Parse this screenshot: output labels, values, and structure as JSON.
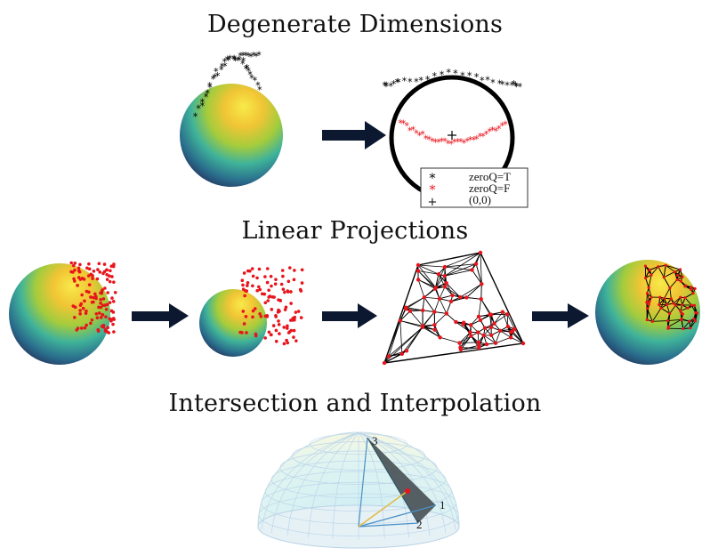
{
  "sections": {
    "degenerate": {
      "title": "Degenerate Dimensions"
    },
    "linear": {
      "title": "Linear Projections"
    },
    "intersection": {
      "title": "Intersection and Interpolation"
    }
  },
  "legend": {
    "entries": [
      {
        "symbol": "*",
        "label": "zeroQ=T",
        "color": "#000000"
      },
      {
        "symbol": "*",
        "label": "zeroQ=F",
        "color": "#e8141c"
      },
      {
        "symbol": "+",
        "label": "(0,0)",
        "color": "#000000"
      }
    ]
  },
  "vertex_labels": [
    "3",
    "1",
    "2"
  ],
  "colors": {
    "arrow": "#0b1830",
    "point_red": "#e8141c",
    "point_black": "#000000",
    "sphere_top": "#f7e84a",
    "sphere_mid": "#3fb39a",
    "sphere_bottom": "#22234f"
  }
}
